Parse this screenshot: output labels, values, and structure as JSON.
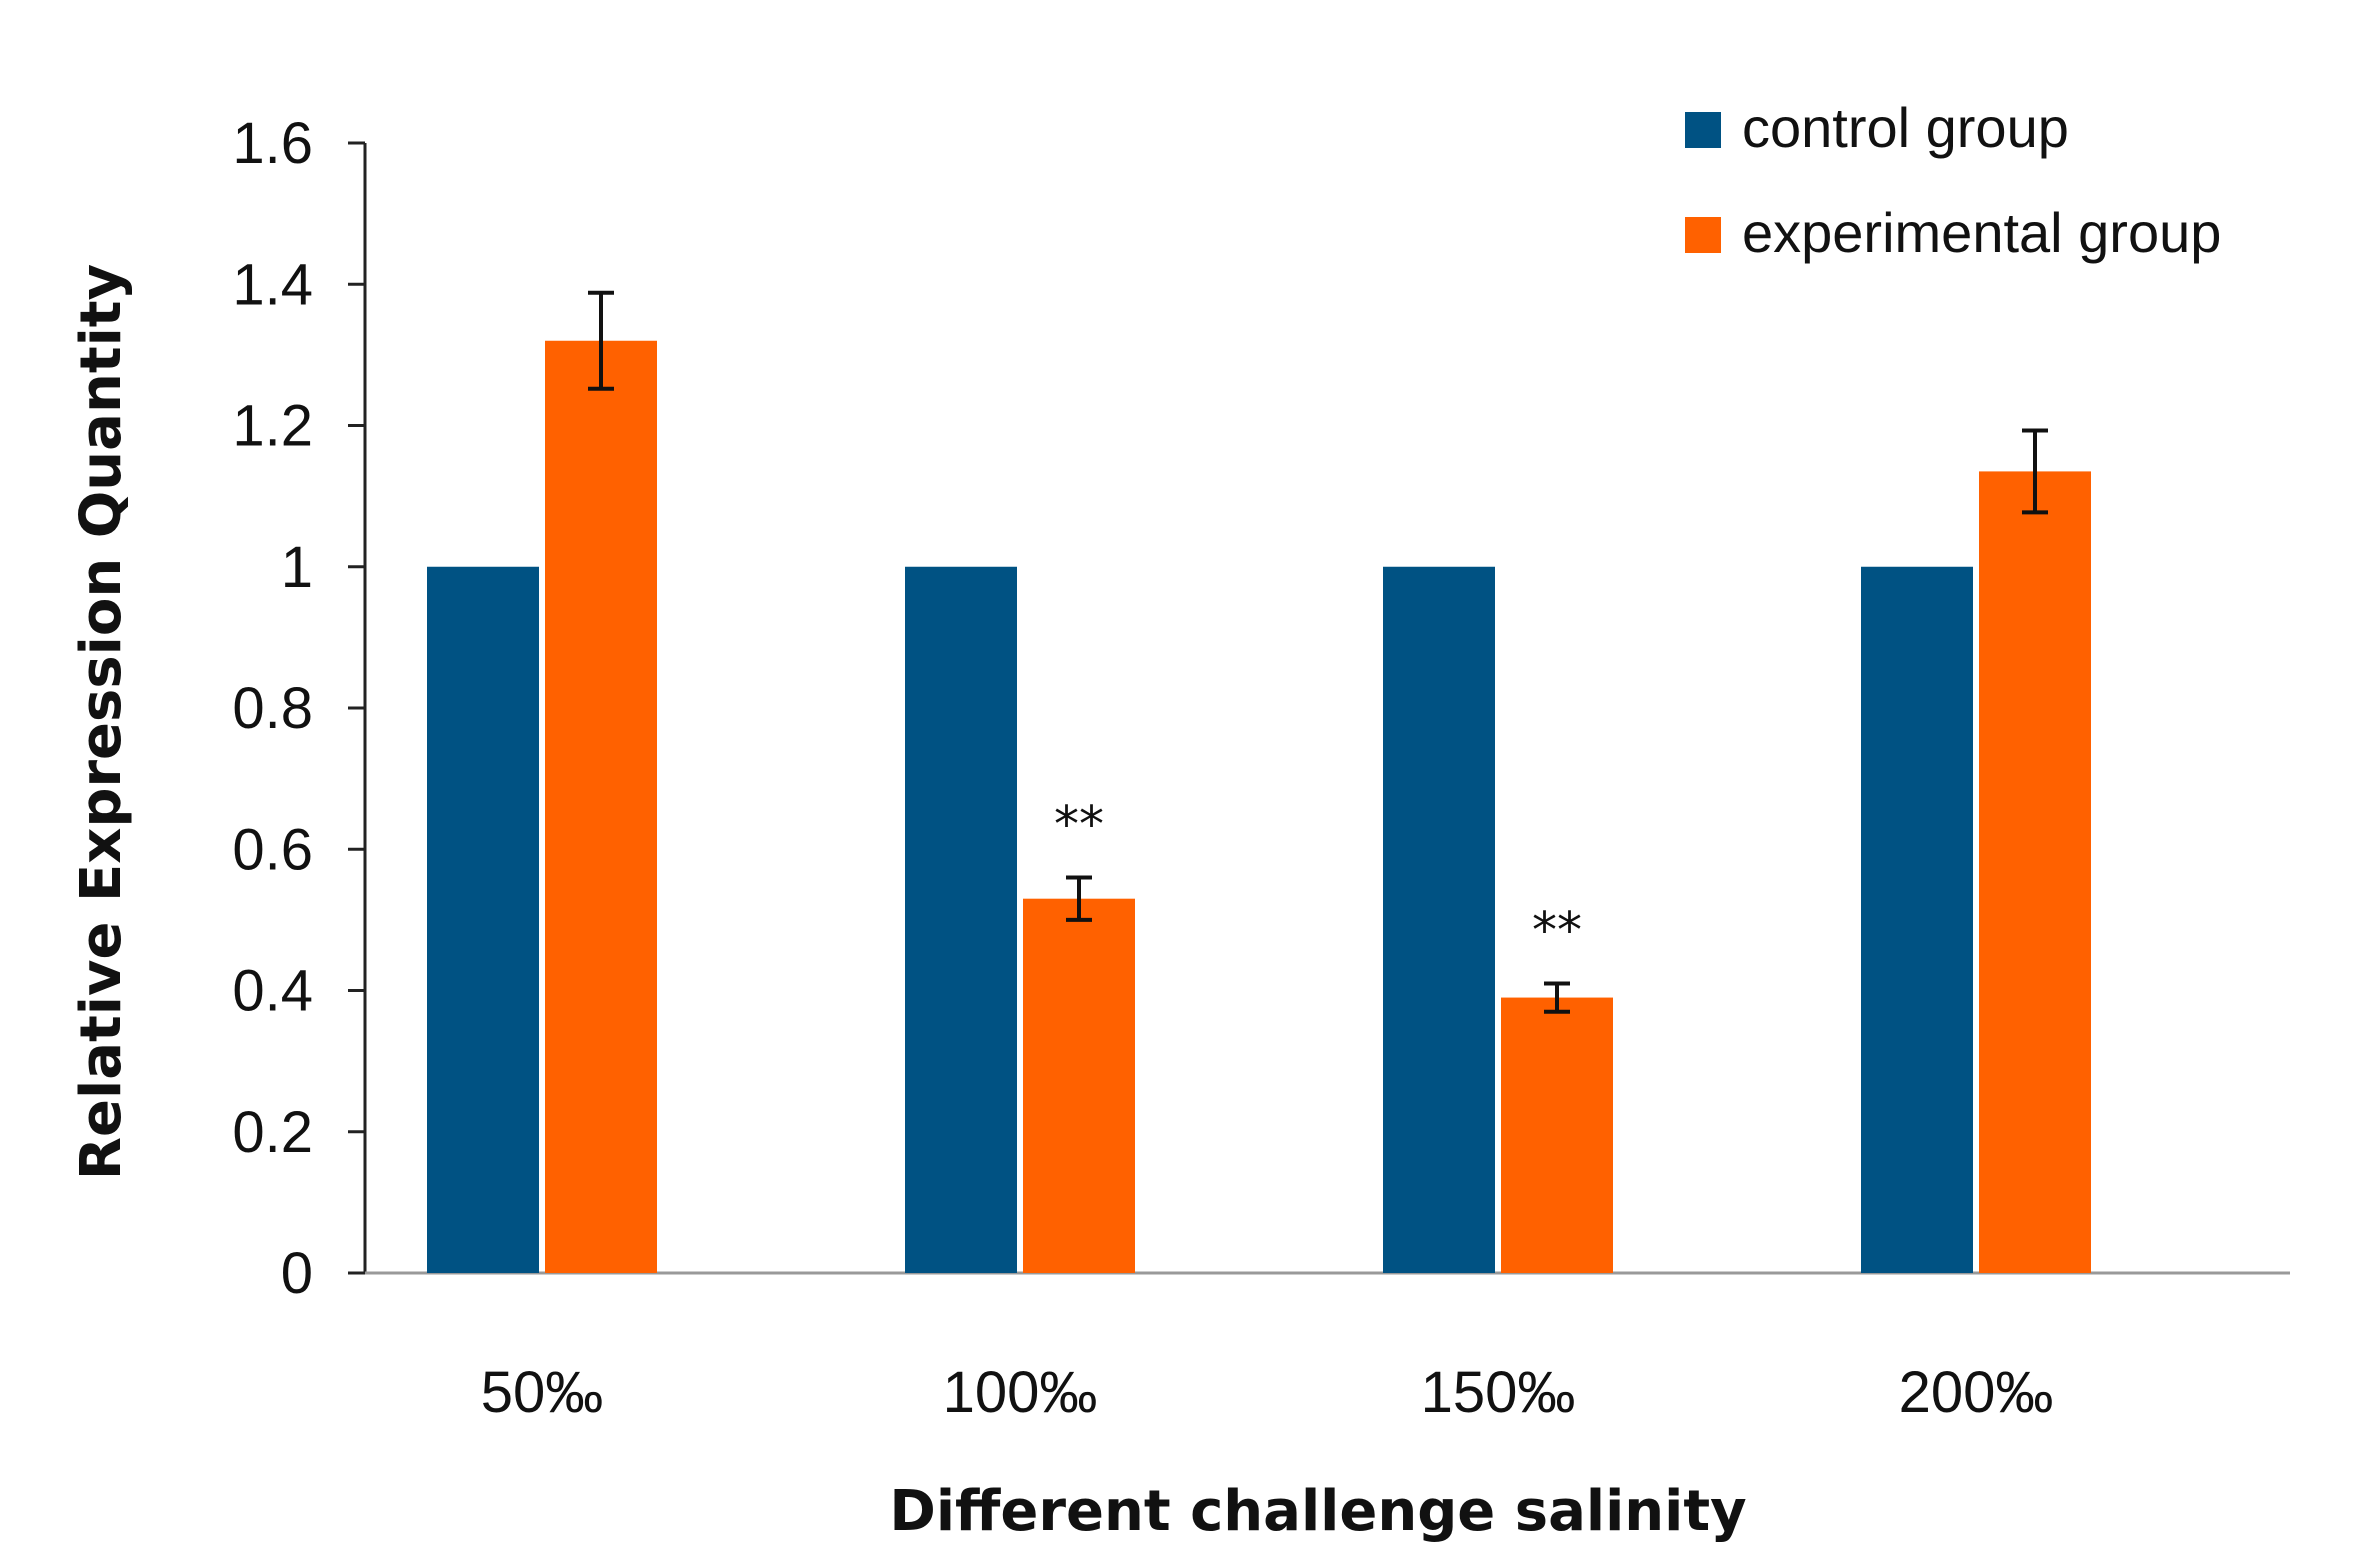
{
  "chart_data": {
    "type": "bar",
    "title": "",
    "xlabel": "Different  challenge  salinity",
    "ylabel": "Relative  Expression  Quantity",
    "categories": [
      "50‰",
      "100‰",
      "150‰",
      "200‰"
    ],
    "ylim": [
      0,
      1.6
    ],
    "yticks": [
      0,
      0.2,
      0.4,
      0.6,
      0.8,
      1,
      1.2,
      1.4,
      1.6
    ],
    "ytick_labels": [
      "0",
      "0.2",
      "0.4",
      "0.6",
      "0.8",
      "1",
      "1.2",
      "1.4",
      "1.6"
    ],
    "grid": false,
    "legend_position": "top-right",
    "series": [
      {
        "name": "control group",
        "color": "#005283",
        "values": [
          1,
          1,
          1,
          1
        ],
        "errors": [
          null,
          null,
          null,
          null
        ]
      },
      {
        "name": "experimental group",
        "color": "#ff6100",
        "values": [
          1.32,
          0.53,
          0.39,
          1.135
        ],
        "errors": [
          0.068,
          0.03,
          0.02,
          0.058
        ],
        "annotations": [
          "",
          "**",
          "**",
          ""
        ]
      }
    ]
  }
}
